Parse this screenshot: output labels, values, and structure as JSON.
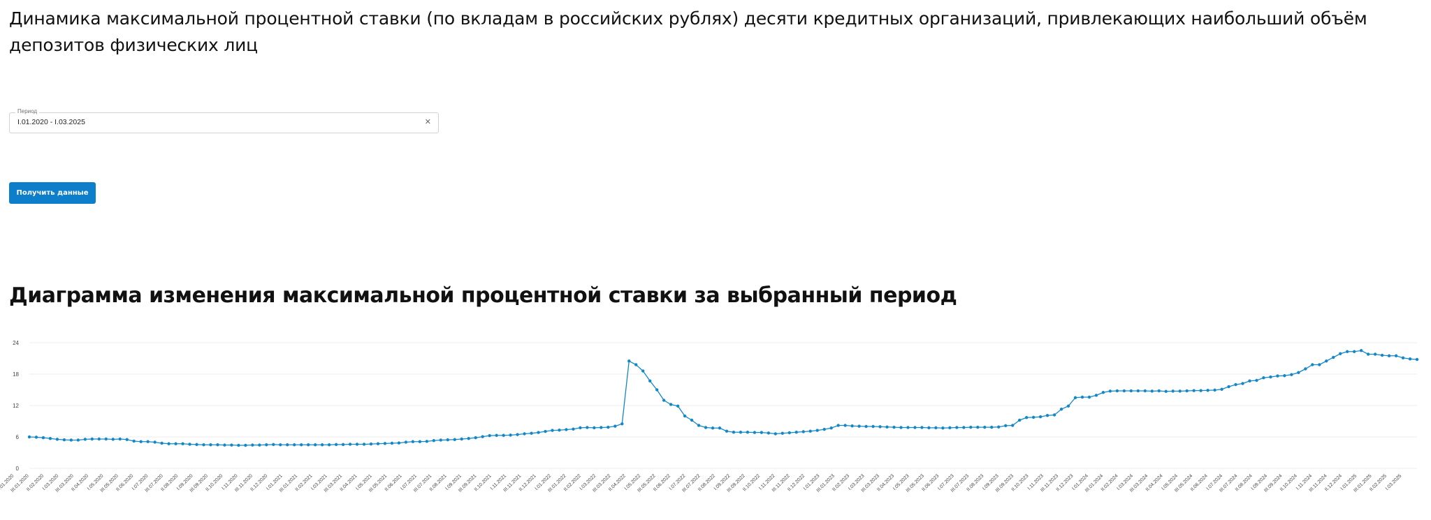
{
  "page": {
    "title": "Динамика максимальной процентной ставки (по вкладам в российских рублях) десяти кредитных организаций, привлекающих наибольший объём депозитов физических лиц"
  },
  "filter": {
    "period_label": "Период",
    "period_value": "I.01.2020 - I.03.2025",
    "clear_icon": "close-icon"
  },
  "actions": {
    "submit_label": "Получить данные"
  },
  "chart_section": {
    "title": "Диаграмма изменения максимальной процентной ставки за выбранный период"
  },
  "colors": {
    "accent": "#0d7ec9",
    "series": "#1287c9",
    "grid": "#ececec",
    "text": "#111111"
  },
  "chart_data": {
    "type": "line",
    "title": "",
    "xlabel": "",
    "ylabel": "",
    "ylim": [
      0,
      24
    ],
    "yticks": [
      0,
      6,
      12,
      18,
      24
    ],
    "grid": true,
    "legend": "none",
    "x_tick_labels": [
      "I.01.2020",
      "III.01.2020",
      "II.02.2020",
      "I.03.2020",
      "III.03.2020",
      "II.04.2020",
      "I.05.2020",
      "III.05.2020",
      "II.06.2020",
      "I.07.2020",
      "III.07.2020",
      "II.08.2020",
      "I.09.2020",
      "III.09.2020",
      "II.10.2020",
      "I.11.2020",
      "III.11.2020",
      "II.12.2020",
      "I.01.2021",
      "III.01.2021",
      "II.02.2021",
      "I.03.2021",
      "III.03.2021",
      "II.04.2021",
      "I.05.2021",
      "III.05.2021",
      "II.06.2021",
      "I.07.2021",
      "III.07.2021",
      "II.08.2021",
      "I.09.2021",
      "III.09.2021",
      "II.10.2021",
      "I.11.2021",
      "III.11.2021",
      "II.12.2021",
      "I.01.2022",
      "III.01.2022",
      "II.02.2022",
      "I.03.2022",
      "III.03.2022",
      "II.04.2022",
      "I.05.2022",
      "III.05.2022",
      "II.06.2022",
      "I.07.2022",
      "III.07.2022",
      "II.08.2022",
      "I.09.2022",
      "III.09.2022",
      "II.10.2022",
      "I.11.2022",
      "III.11.2022",
      "II.12.2022",
      "I.01.2023",
      "III.01.2023",
      "II.02.2023",
      "I.03.2023",
      "III.03.2023",
      "II.04.2023",
      "I.05.2023",
      "III.05.2023",
      "II.06.2023",
      "I.07.2023",
      "III.07.2023",
      "II.08.2023",
      "I.09.2023",
      "III.09.2023",
      "II.10.2023",
      "I.11.2023",
      "III.11.2023",
      "II.12.2023",
      "I.01.2024",
      "III.01.2024",
      "II.02.2024",
      "I.03.2024",
      "III.03.2024",
      "II.04.2024",
      "I.05.2024",
      "III.05.2024",
      "II.06.2024",
      "I.07.2024",
      "III.07.2024",
      "II.08.2024",
      "I.09.2024",
      "III.09.2024",
      "II.10.2024",
      "I.11.2024",
      "III.11.2024",
      "II.12.2024",
      "I.01.2025",
      "III.01.2025",
      "II.02.2025",
      "I.03.2025"
    ],
    "series": [
      {
        "values": [
          6.0,
          5.95,
          5.85,
          5.7,
          5.55,
          5.45,
          5.4,
          5.4,
          5.55,
          5.6,
          5.6,
          5.6,
          5.55,
          5.6,
          5.5,
          5.2,
          5.1,
          5.1,
          5.0,
          4.8,
          4.7,
          4.7,
          4.7,
          4.6,
          4.55,
          4.5,
          4.5,
          4.5,
          4.45,
          4.45,
          4.4,
          4.4,
          4.45,
          4.45,
          4.5,
          4.55,
          4.5,
          4.5,
          4.5,
          4.5,
          4.5,
          4.5,
          4.5,
          4.5,
          4.55,
          4.55,
          4.6,
          4.6,
          4.6,
          4.65,
          4.7,
          4.75,
          4.8,
          4.85,
          5.0,
          5.1,
          5.1,
          5.15,
          5.3,
          5.4,
          5.45,
          5.5,
          5.6,
          5.7,
          5.85,
          6.05,
          6.25,
          6.3,
          6.3,
          6.35,
          6.45,
          6.6,
          6.7,
          6.85,
          7.05,
          7.25,
          7.3,
          7.4,
          7.5,
          7.75,
          7.8,
          7.75,
          7.8,
          7.85,
          8.05,
          8.5,
          20.5,
          19.8,
          18.6,
          16.7,
          15.0,
          13.0,
          12.2,
          11.9,
          10.0,
          9.2,
          8.2,
          7.8,
          7.7,
          7.7,
          7.1,
          6.9,
          6.9,
          6.9,
          6.85,
          6.85,
          6.75,
          6.6,
          6.7,
          6.8,
          6.9,
          7.0,
          7.1,
          7.25,
          7.45,
          7.7,
          8.2,
          8.2,
          8.1,
          8.05,
          8.0,
          8.0,
          7.95,
          7.9,
          7.85,
          7.8,
          7.8,
          7.8,
          7.8,
          7.75,
          7.75,
          7.7,
          7.75,
          7.8,
          7.8,
          7.85,
          7.85,
          7.85,
          7.85,
          7.9,
          8.15,
          8.2,
          9.2,
          9.7,
          9.75,
          9.85,
          10.1,
          10.2,
          11.3,
          11.9,
          13.5,
          13.6,
          13.6,
          13.95,
          14.5,
          14.75,
          14.8,
          14.8,
          14.8,
          14.8,
          14.8,
          14.75,
          14.8,
          14.7,
          14.75,
          14.75,
          14.8,
          14.85,
          14.85,
          14.9,
          14.95,
          15.1,
          15.6,
          16.0,
          16.2,
          16.7,
          16.8,
          17.3,
          17.45,
          17.65,
          17.7,
          17.9,
          18.3,
          19.0,
          19.8,
          19.8,
          20.5,
          21.2,
          21.9,
          22.3,
          22.3,
          22.5,
          21.8,
          21.8,
          21.6,
          21.5,
          21.5,
          21.1,
          20.9,
          20.8
        ]
      }
    ]
  }
}
